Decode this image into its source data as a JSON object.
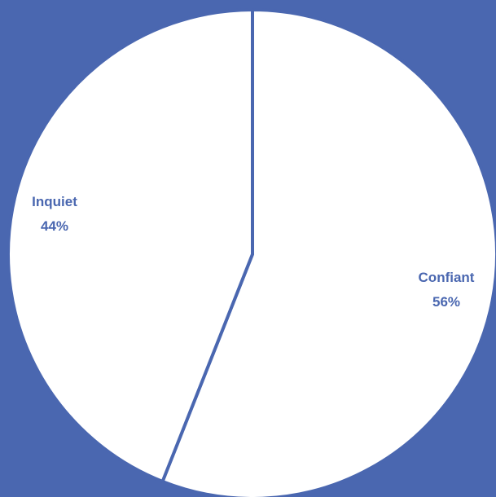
{
  "chart_data": {
    "type": "pie",
    "title": "",
    "slices": [
      {
        "label": "Confiant",
        "value": 56,
        "value_label": "56%"
      },
      {
        "label": "Inquiet",
        "value": 44,
        "value_label": "44%"
      }
    ],
    "start_angle": "12 o'clock",
    "direction": "clockwise",
    "legend": "none"
  },
  "colors": {
    "background": "#4a67b0",
    "slice_fill": "#ffffff",
    "slice_border": "#4a67b0",
    "label_text": "#4a67b0"
  }
}
